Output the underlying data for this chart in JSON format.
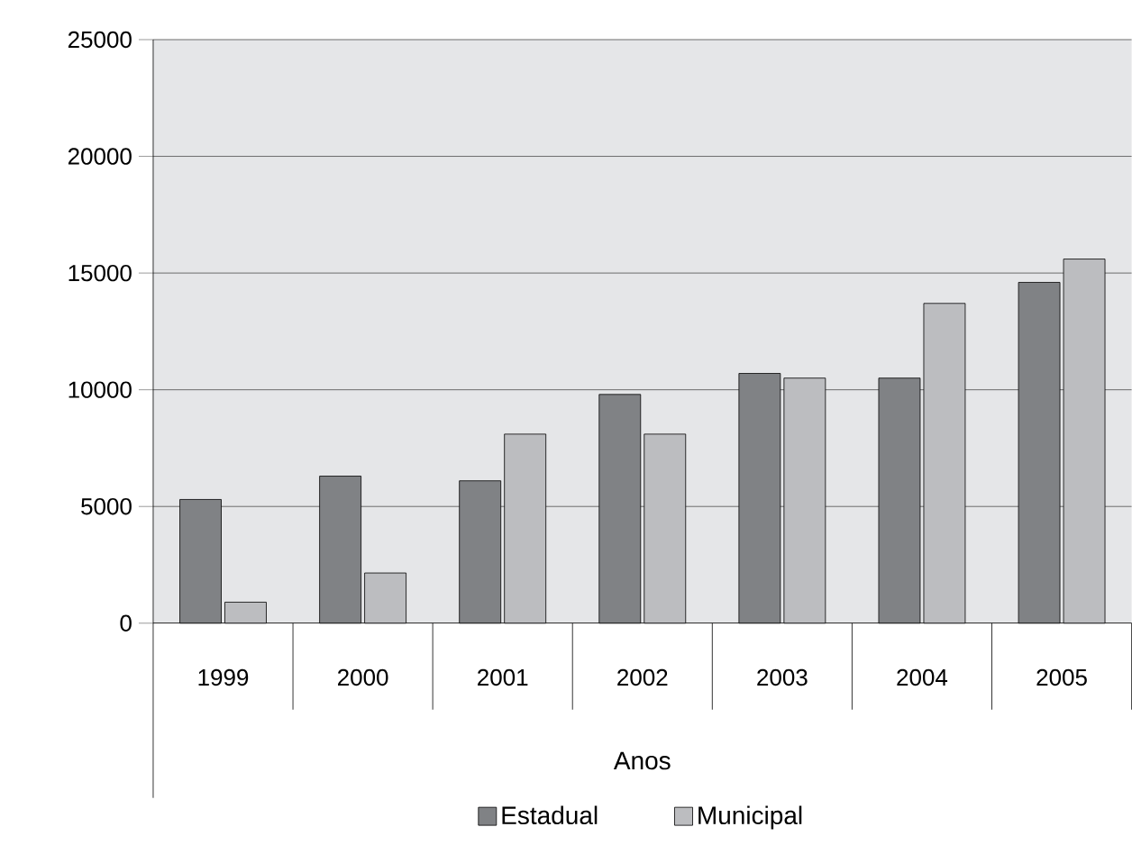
{
  "chart_data": {
    "type": "bar",
    "xlabel": "Anos",
    "categories": [
      "1999",
      "2000",
      "2001",
      "2002",
      "2003",
      "2004",
      "2005"
    ],
    "series": [
      {
        "name": "Estadual",
        "color": "#808285",
        "values": [
          5300,
          6300,
          6100,
          9800,
          10700,
          10500,
          14600
        ]
      },
      {
        "name": "Municipal",
        "color": "#bcbdc0",
        "values": [
          900,
          2150,
          8100,
          8100,
          10500,
          13700,
          15600
        ]
      }
    ],
    "ylim": [
      0,
      25000
    ],
    "yticks": [
      0,
      5000,
      10000,
      15000,
      20000,
      25000
    ],
    "grid": "y",
    "legend": "bottom"
  }
}
